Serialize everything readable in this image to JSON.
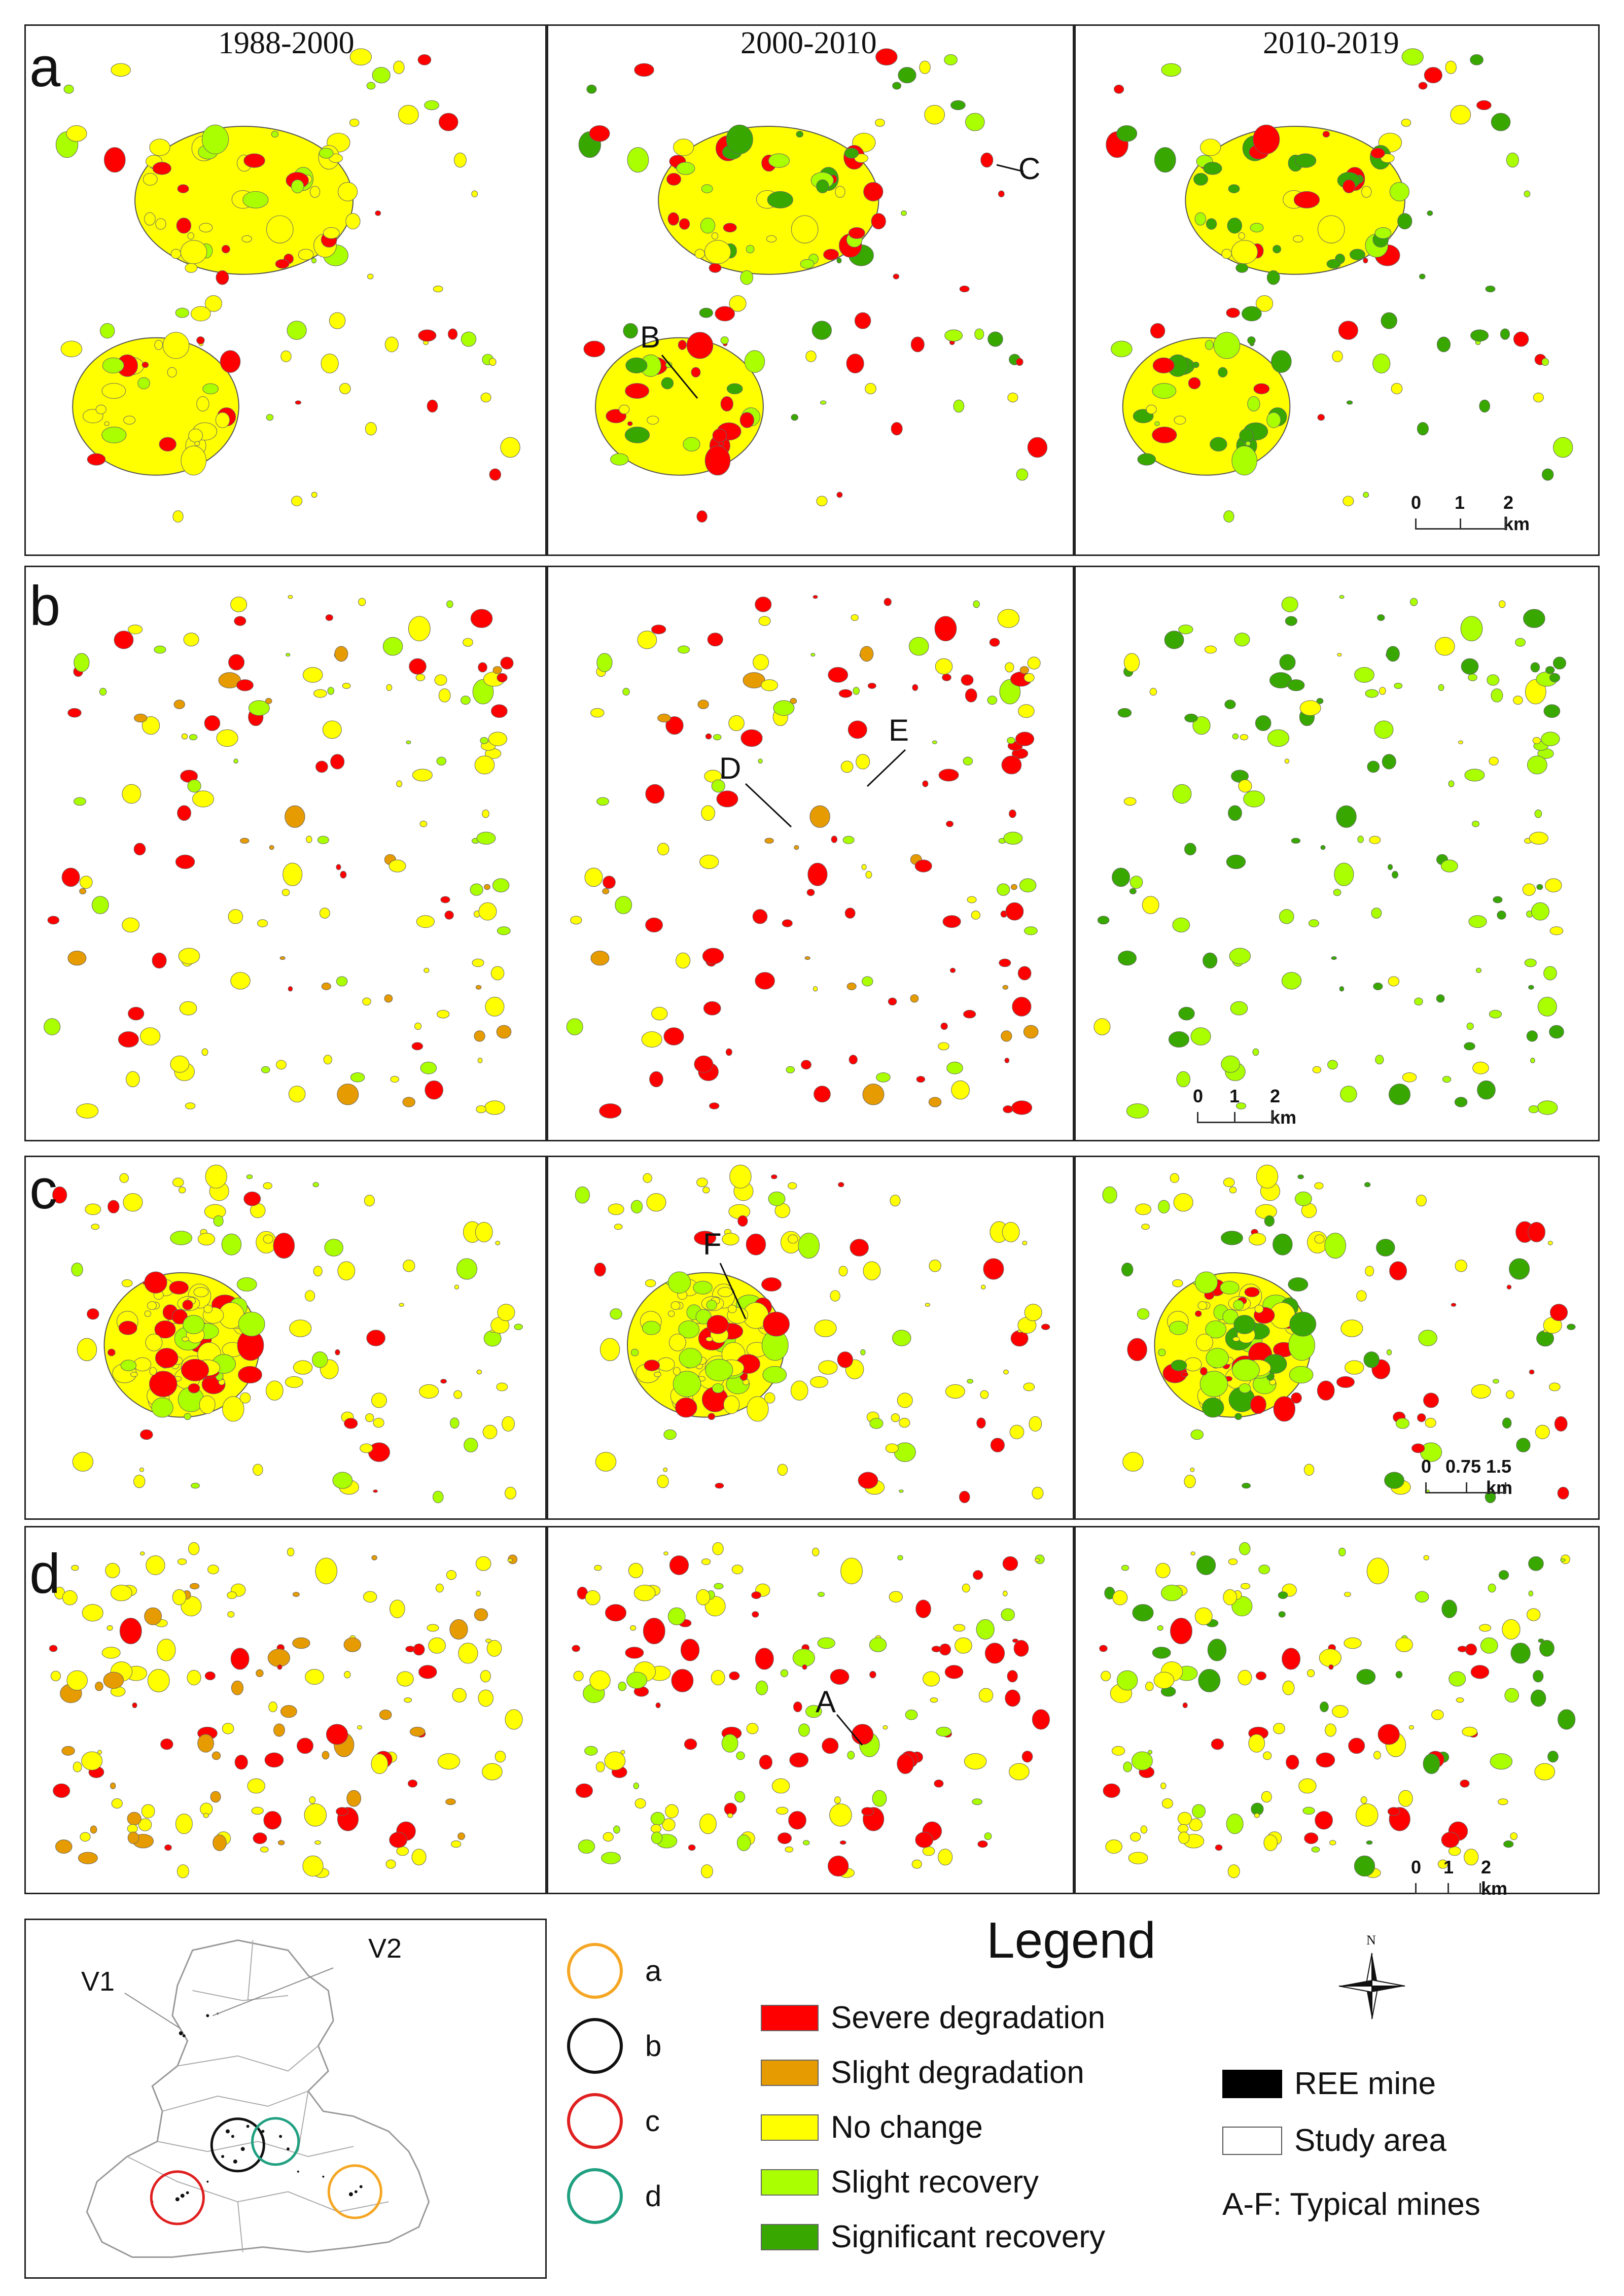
{
  "periods": [
    "1988-2000",
    "2000-2010",
    "2010-2019"
  ],
  "rows": [
    {
      "letter": "a",
      "scale": [
        "0",
        "1",
        "2 km"
      ],
      "mines": [
        "",
        "B C",
        ""
      ]
    },
    {
      "letter": "b",
      "scale": [
        "0",
        "1",
        "2 km"
      ],
      "mines": [
        "",
        "D E",
        ""
      ]
    },
    {
      "letter": "c",
      "scale": [
        "0",
        "0.75",
        "1.5 km"
      ],
      "mines": [
        "",
        "F",
        ""
      ]
    },
    {
      "letter": "d",
      "scale": [
        "0",
        "1",
        "2 km"
      ],
      "mines": [
        "",
        "A",
        ""
      ]
    }
  ],
  "mine_labels": {
    "A": "A",
    "B": "B",
    "C": "C",
    "D": "D",
    "E": "E",
    "F": "F"
  },
  "overview": {
    "v1": "V1",
    "v2": "V2"
  },
  "region_legend": [
    {
      "key": "a",
      "color": "#f5a623"
    },
    {
      "key": "b",
      "color": "#111111"
    },
    {
      "key": "c",
      "color": "#e02020"
    },
    {
      "key": "d",
      "color": "#20a080"
    }
  ],
  "legend": {
    "title": "Legend",
    "classes": [
      {
        "label": "Severe degradation",
        "color": "#ff0000"
      },
      {
        "label": "Slight degradation",
        "color": "#e69b00"
      },
      {
        "label": "No change",
        "color": "#ffff00"
      },
      {
        "label": "Slight recovery",
        "color": "#aaff00"
      },
      {
        "label": "Significant recovery",
        "color": "#38a800"
      }
    ],
    "ree_mine": "REE mine",
    "study_area": "Study area",
    "typical": "A-F: Typical mines",
    "north": "N"
  },
  "colors": {
    "severe": "#ff0000",
    "slight_deg": "#e69b00",
    "nochange": "#ffff00",
    "slight_rec": "#aaff00",
    "sig_rec": "#38a800"
  }
}
